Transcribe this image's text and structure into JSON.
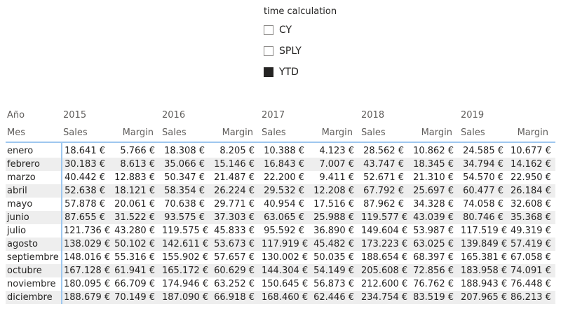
{
  "slicer": {
    "title": "time calculation",
    "items": [
      {
        "label": "CY",
        "checked": false
      },
      {
        "label": "SPLY",
        "checked": false
      },
      {
        "label": "YTD",
        "checked": true
      }
    ]
  },
  "matrix": {
    "row_header_top": "Año",
    "row_header_bottom": "Mes",
    "years": [
      "2015",
      "2016",
      "2017",
      "2018",
      "2019"
    ],
    "measures": [
      "Sales",
      "Margin"
    ],
    "rows": [
      {
        "mes": "enero",
        "values": [
          "18.641 €",
          "5.766 €",
          "18.308 €",
          "8.205 €",
          "10.388 €",
          "4.123 €",
          "28.562 €",
          "10.862 €",
          "24.585 €",
          "10.677 €"
        ]
      },
      {
        "mes": "febrero",
        "values": [
          "30.183 €",
          "8.613 €",
          "35.066 €",
          "15.146 €",
          "16.843 €",
          "7.007 €",
          "43.747 €",
          "18.345 €",
          "34.794 €",
          "14.162 €"
        ]
      },
      {
        "mes": "marzo",
        "values": [
          "40.442 €",
          "12.883 €",
          "50.347 €",
          "21.487 €",
          "22.200 €",
          "9.411 €",
          "52.671 €",
          "21.310 €",
          "54.570 €",
          "22.950 €"
        ]
      },
      {
        "mes": "abril",
        "values": [
          "52.638 €",
          "18.121 €",
          "58.354 €",
          "26.224 €",
          "29.532 €",
          "12.208 €",
          "67.792 €",
          "25.697 €",
          "60.477 €",
          "26.184 €"
        ]
      },
      {
        "mes": "mayo",
        "values": [
          "57.878 €",
          "20.061 €",
          "70.638 €",
          "29.771 €",
          "40.954 €",
          "17.516 €",
          "87.962 €",
          "34.328 €",
          "74.058 €",
          "32.608 €"
        ]
      },
      {
        "mes": "junio",
        "values": [
          "87.655 €",
          "31.522 €",
          "93.575 €",
          "37.303 €",
          "63.065 €",
          "25.988 €",
          "119.577 €",
          "43.039 €",
          "80.746 €",
          "35.368 €"
        ]
      },
      {
        "mes": "julio",
        "values": [
          "121.736 €",
          "43.280 €",
          "119.575 €",
          "45.833 €",
          "95.592 €",
          "36.890 €",
          "149.604 €",
          "53.987 €",
          "117.519 €",
          "49.319 €"
        ]
      },
      {
        "mes": "agosto",
        "values": [
          "138.029 €",
          "50.102 €",
          "142.611 €",
          "53.673 €",
          "117.919 €",
          "45.482 €",
          "173.223 €",
          "63.025 €",
          "139.849 €",
          "57.419 €"
        ]
      },
      {
        "mes": "septiembre",
        "values": [
          "148.016 €",
          "55.316 €",
          "155.902 €",
          "57.657 €",
          "130.002 €",
          "50.035 €",
          "188.654 €",
          "68.397 €",
          "165.381 €",
          "67.058 €"
        ]
      },
      {
        "mes": "octubre",
        "values": [
          "167.128 €",
          "61.941 €",
          "165.172 €",
          "60.629 €",
          "144.304 €",
          "54.149 €",
          "205.608 €",
          "72.856 €",
          "183.958 €",
          "74.091 €"
        ]
      },
      {
        "mes": "noviembre",
        "values": [
          "180.095 €",
          "66.709 €",
          "174.946 €",
          "63.252 €",
          "150.645 €",
          "56.873 €",
          "212.600 €",
          "76.762 €",
          "188.943 €",
          "76.448 €"
        ]
      },
      {
        "mes": "diciembre",
        "values": [
          "188.679 €",
          "70.149 €",
          "187.090 €",
          "66.918 €",
          "168.460 €",
          "62.446 €",
          "234.754 €",
          "83.519 €",
          "207.965 €",
          "86.213 €"
        ]
      }
    ]
  },
  "colors": {
    "accent_border": "#9ec7ef",
    "stripe": "#eeeeee",
    "text": "#252423",
    "header_text": "#605e5c"
  }
}
